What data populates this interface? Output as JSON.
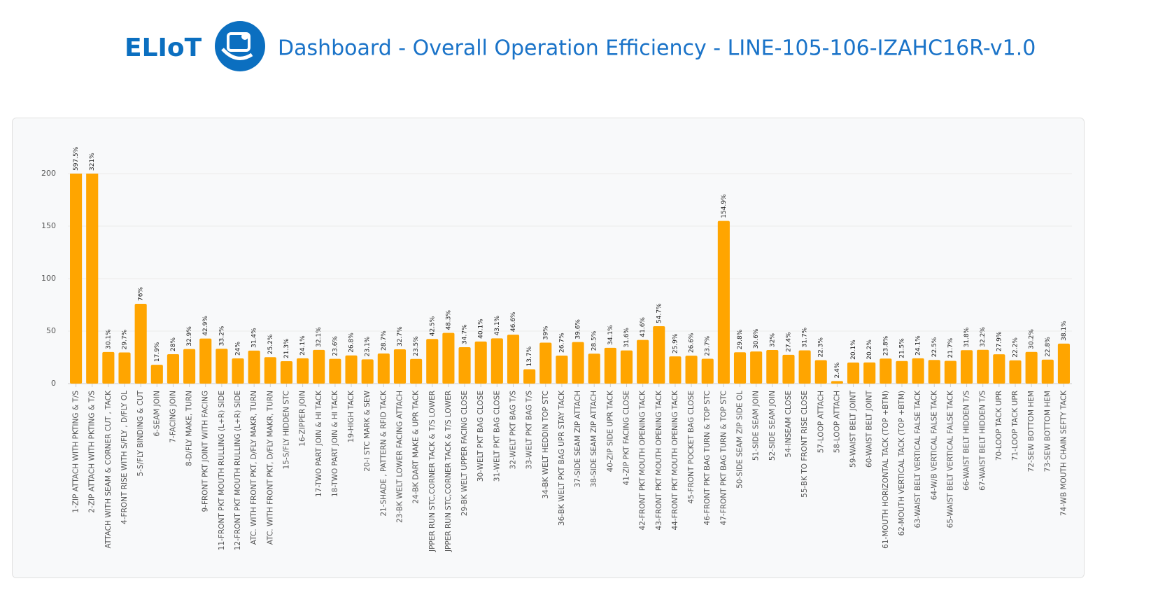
{
  "header": {
    "logo": "ELIoT",
    "title": "Dashboard - Overall Operation Efficiency - LINE-105-106-IZAHC16R-v1.0"
  },
  "chart_data": {
    "type": "bar",
    "color": "#ffa500",
    "grid": true,
    "ylim": [
      0,
      200
    ],
    "yticks": [
      0,
      50,
      100,
      150,
      200
    ],
    "categories": [
      "1-ZIP ATTACH WITH PKTING & T/S",
      "2-ZIP ATTACH WITH PKTING & T/S",
      "ATTACH WITH SEAM & CORNER CUT , TACK",
      "4-FRONT RISE WITH S/FLY , D/FLY OL",
      "5-S/FLY BINDING & CUT",
      "6-SEAM JOIN",
      "7-FACING JOIN",
      "8-D/FLY MAKE, TURN",
      "9-FRONT PKT JOINT WITH FACING",
      "11-FRONT PKT MOUTH RULLING (L+R) SIDE",
      "12-FRONT PKT MOUTH RULLING (L+R) SIDE",
      "ATC. WITH FRONT PKT, D/FLY MAKR, TURN",
      "ATC. WITH FRONT PKT, D/FLY MAKR, TURN",
      "15-S/FLY HIDDEN STC",
      "16-ZIPPER JOIN",
      "17-TWO PART JOIN & HI TACK",
      "18-TWO PART JOIN & HI TACK",
      "19-HIGH TACK",
      "20-I STC MARK & SEW",
      "21-SHADE , PATTERN & RFID TACK",
      "23-BK WELT LOWER FACING ATTACH",
      "24-BK DART MAKE & UPR TACK",
      "JPPER RUN STC,CORNER TACK & T/S LOWER",
      "JPPER RUN STC,CORNER TACK & T/S LOWER",
      "29-BK WELT UPPER FACING CLOSE",
      "30-WELT PKT BAG CLOSE",
      "31-WELT PKT BAG CLOSE",
      "32-WELT PKT BAG T/S",
      "33-WELT PKT BAG T/S",
      "34-BK WELT HEDDIN TOP STC",
      "36-BK WELT PKT BAG UPR STAY TACK",
      "37-SIDE SEAM ZIP ATTACH",
      "38-SIDE SEAM ZIP ATTACH",
      "40-ZIP SIDE UPR TACK",
      "41-ZIP PKT FACING CLOSE",
      "42-FRONT PKT MOUTH OPENING TACK",
      "43-FRONT PKT MOUTH OPENING TACK",
      "44-FRONT PKT MOUTH OPENING TACK",
      "45-FRONT POCKET BAG CLOSE",
      "46-FRONT PKT BAG TURN & TOP STC",
      "47-FRONT PKT BAG TURN & TOP STC",
      "50-SIDE SEAM ZIP SIDE OL",
      "51-SIDE SEAM JOIN",
      "52-SIDE SEAM JOIN",
      "54-INSEAM CLOSE",
      "55-BK TO FRONT RISE CLOSE",
      "57-LOOP ATTACH",
      "58-LOOP ATTACH",
      "59-WAIST BELT JOINT",
      "60-WAIST BELT JOINT",
      "61-MOUTH HORIZONTAL TACK (TOP +BTM)",
      "62-MOUTH VERTICAL TACK (TOP +BTM)",
      "63-WAIST BELT VERTICAL FALSE TACK",
      "64-W/B VERTICAL FALSE TACK",
      "65-WAIST BELT VERTICAL FALSE TACK",
      "66-WAIST BELT HIDDEN T/S",
      "67-WAIST BELT HIDDEN T/S",
      "70-LOOP TACK UPR",
      "71-LOOP TACK UPR",
      "72-SEW BOTTOM HEM",
      "73-SEW BOTTOM HEM",
      "74-WB MOUTH CHAIN SEFTY TACK"
    ],
    "values": [
      597.5,
      321,
      30.1,
      29.7,
      76,
      17.9,
      28,
      32.9,
      42.9,
      33.2,
      24,
      31.4,
      25.2,
      21.3,
      24.1,
      32.1,
      23.6,
      26.8,
      23.1,
      28.7,
      32.7,
      23.5,
      42.5,
      48.3,
      34.7,
      40.1,
      43.1,
      46.6,
      13.7,
      39,
      26.7,
      39.6,
      28.5,
      34.1,
      31.6,
      41.6,
      54.7,
      25.9,
      26.6,
      23.7,
      154.9,
      29.8,
      30.6,
      32,
      27.4,
      31.7,
      22.3,
      2.4,
      20.1,
      20.2,
      23.8,
      21.5,
      24.1,
      22.5,
      21.7,
      31.8,
      32.2,
      27.9,
      22.2,
      30.2,
      22.8,
      38.1
    ],
    "value_labels": [
      "597.5%",
      "321%",
      "30.1%",
      "29.7%",
      "76%",
      "17.9%",
      "28%",
      "32.9%",
      "42.9%",
      "33.2%",
      "24%",
      "31.4%",
      "25.2%",
      "21.3%",
      "24.1%",
      "32.1%",
      "23.6%",
      "26.8%",
      "23.1%",
      "28.7%",
      "32.7%",
      "23.5%",
      "42.5%",
      "48.3%",
      "34.7%",
      "40.1%",
      "43.1%",
      "46.6%",
      "13.7%",
      "39%",
      "26.7%",
      "39.6%",
      "28.5%",
      "34.1%",
      "31.6%",
      "41.6%",
      "54.7%",
      "25.9%",
      "26.6%",
      "23.7%",
      "154.9%",
      "29.8%",
      "30.6%",
      "32%",
      "27.4%",
      "31.7%",
      "22.3%",
      "2.4%",
      "20.1%",
      "20.2%",
      "23.8%",
      "21.5%",
      "24.1%",
      "22.5%",
      "21.7%",
      "31.8%",
      "32.2%",
      "27.9%",
      "22.2%",
      "30.2%",
      "22.8%",
      "38.1%"
    ]
  }
}
